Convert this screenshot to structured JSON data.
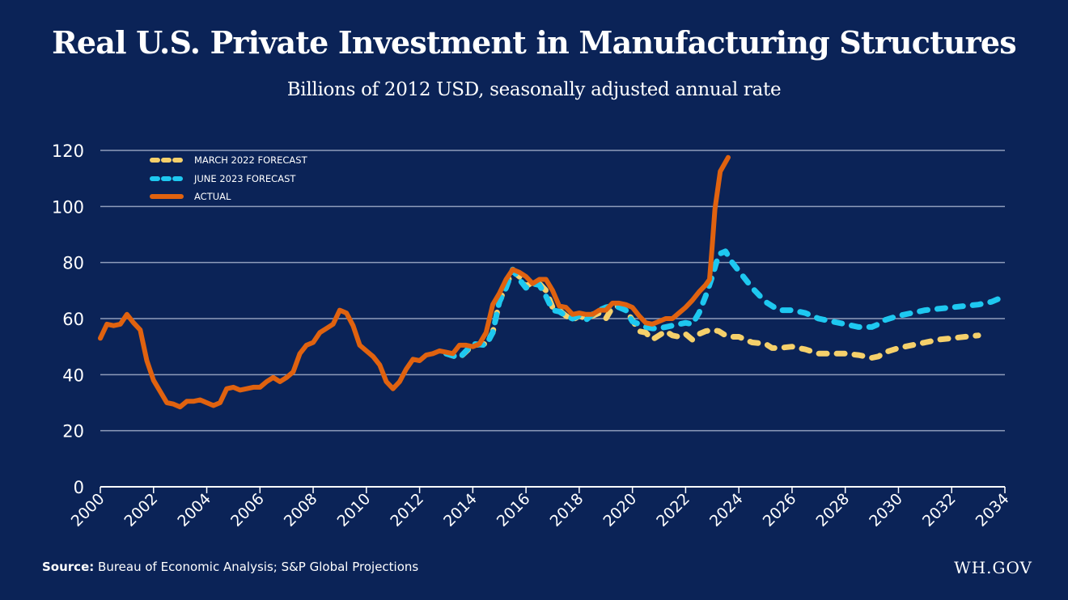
{
  "header": {
    "title": "Real U.S. Private Investment in Manufacturing Structures",
    "subtitle": "Billions of 2012 USD, seasonally adjusted annual rate"
  },
  "footer": {
    "source_label": "Source:",
    "source_text": "Bureau of Economic Analysis; S&P Global Projections",
    "brand": "WH.GOV"
  },
  "colors": {
    "background": "#0b2357",
    "grid": "#8f9dbb",
    "march_2022": "#f5d06b",
    "june_2023": "#1ec8f0",
    "actual": "#e0620f"
  },
  "chart_data": {
    "type": "line",
    "title": "Real U.S. Private Investment in Manufacturing Structures",
    "subtitle": "Billions of 2012 USD, seasonally adjusted annual rate",
    "xlabel": "",
    "ylabel": "",
    "xlim": [
      2000,
      2034
    ],
    "ylim": [
      0,
      120
    ],
    "x_ticks": [
      "2000",
      "2002",
      "2004",
      "2006",
      "2008",
      "2010",
      "2012",
      "2014",
      "2016",
      "2018",
      "2020",
      "2022",
      "2024",
      "2026",
      "2028",
      "2030",
      "2032",
      "2034"
    ],
    "y_ticks": [
      "0",
      "20",
      "40",
      "60",
      "80",
      "100",
      "120"
    ],
    "grid": "horizontal",
    "legend_position": "top-left",
    "series": [
      {
        "name": "MARCH 2022 FORECAST",
        "style": "dashed",
        "color": "#f5d06b",
        "points": [
          [
            2013.0,
            47.5
          ],
          [
            2013.5,
            46
          ],
          [
            2014.0,
            50.5
          ],
          [
            2014.5,
            51
          ],
          [
            2014.75,
            55
          ],
          [
            2015.0,
            66
          ],
          [
            2015.25,
            72
          ],
          [
            2015.5,
            77
          ],
          [
            2015.75,
            75
          ],
          [
            2016.0,
            71.5
          ],
          [
            2016.25,
            73
          ],
          [
            2016.5,
            72.5
          ],
          [
            2016.75,
            70
          ],
          [
            2017.0,
            64
          ],
          [
            2017.25,
            63
          ],
          [
            2017.5,
            61
          ],
          [
            2017.75,
            59.5
          ],
          [
            2018.0,
            61
          ],
          [
            2018.25,
            60
          ],
          [
            2018.5,
            61
          ],
          [
            2018.75,
            62
          ],
          [
            2019.0,
            60
          ],
          [
            2019.25,
            64
          ],
          [
            2019.5,
            64.5
          ],
          [
            2019.75,
            63
          ],
          [
            2020.0,
            59.5
          ],
          [
            2020.25,
            55.5
          ],
          [
            2020.5,
            55
          ],
          [
            2020.75,
            52.5
          ],
          [
            2021.0,
            54
          ],
          [
            2021.25,
            55.5
          ],
          [
            2021.5,
            54
          ],
          [
            2021.75,
            53.5
          ],
          [
            2022.0,
            54.5
          ],
          [
            2022.25,
            52.5
          ],
          [
            2022.5,
            54.5
          ],
          [
            2022.75,
            55.5
          ],
          [
            2023.0,
            56
          ],
          [
            2023.25,
            55.5
          ],
          [
            2023.5,
            54
          ],
          [
            2023.75,
            53.5
          ],
          [
            2024.0,
            53.5
          ],
          [
            2024.5,
            51.5
          ],
          [
            2025.0,
            51
          ],
          [
            2025.25,
            49.5
          ],
          [
            2025.5,
            49.5
          ],
          [
            2026.0,
            50
          ],
          [
            2026.5,
            49
          ],
          [
            2027.0,
            47.5
          ],
          [
            2027.5,
            47.5
          ],
          [
            2028.0,
            47.5
          ],
          [
            2028.5,
            47
          ],
          [
            2029.0,
            46
          ],
          [
            2029.25,
            46.5
          ],
          [
            2029.5,
            48
          ],
          [
            2030.0,
            49.5
          ],
          [
            2030.5,
            50.5
          ],
          [
            2031.0,
            51.5
          ],
          [
            2031.5,
            52.5
          ],
          [
            2032.0,
            53
          ],
          [
            2032.5,
            53.5
          ],
          [
            2033.0,
            54
          ]
        ]
      },
      {
        "name": "JUNE 2023 FORECAST",
        "style": "dashed",
        "color": "#1ec8f0",
        "points": [
          [
            2013.0,
            47.5
          ],
          [
            2013.5,
            46
          ],
          [
            2014.0,
            51
          ],
          [
            2014.5,
            50.5
          ],
          [
            2014.75,
            55
          ],
          [
            2015.0,
            66
          ],
          [
            2015.25,
            71
          ],
          [
            2015.5,
            77.5
          ],
          [
            2015.75,
            74
          ],
          [
            2016.0,
            71
          ],
          [
            2016.25,
            72.5
          ],
          [
            2016.5,
            72
          ],
          [
            2016.75,
            68
          ],
          [
            2017.0,
            63
          ],
          [
            2017.25,
            62.5
          ],
          [
            2017.5,
            61
          ],
          [
            2017.75,
            60
          ],
          [
            2018.0,
            61
          ],
          [
            2018.25,
            59.5
          ],
          [
            2018.5,
            61.5
          ],
          [
            2018.75,
            63
          ],
          [
            2019.0,
            64
          ],
          [
            2019.25,
            64.5
          ],
          [
            2019.5,
            64
          ],
          [
            2019.75,
            63
          ],
          [
            2020.0,
            59
          ],
          [
            2020.25,
            58
          ],
          [
            2020.5,
            57
          ],
          [
            2020.75,
            56.5
          ],
          [
            2021.0,
            56.5
          ],
          [
            2021.25,
            57
          ],
          [
            2021.5,
            57.5
          ],
          [
            2021.75,
            58
          ],
          [
            2022.0,
            58.5
          ],
          [
            2022.25,
            58
          ],
          [
            2022.5,
            62
          ],
          [
            2022.75,
            68
          ],
          [
            2023.0,
            75
          ],
          [
            2023.25,
            83
          ],
          [
            2023.5,
            84
          ],
          [
            2023.75,
            80
          ],
          [
            2024.0,
            77
          ],
          [
            2024.5,
            71
          ],
          [
            2025.0,
            66
          ],
          [
            2025.5,
            63
          ],
          [
            2026.0,
            63
          ],
          [
            2026.5,
            62
          ],
          [
            2027.0,
            60
          ],
          [
            2027.5,
            59
          ],
          [
            2028.0,
            58
          ],
          [
            2028.5,
            57
          ],
          [
            2029.0,
            57
          ],
          [
            2029.25,
            58
          ],
          [
            2029.5,
            59.5
          ],
          [
            2030.0,
            61
          ],
          [
            2030.5,
            62
          ],
          [
            2031.0,
            63
          ],
          [
            2031.5,
            63.5
          ],
          [
            2032.0,
            64
          ],
          [
            2032.5,
            64.5
          ],
          [
            2033.0,
            65
          ],
          [
            2033.5,
            66
          ],
          [
            2034.0,
            68
          ]
        ]
      },
      {
        "name": "ACTUAL",
        "style": "solid",
        "color": "#e0620f",
        "points": [
          [
            2000.0,
            53
          ],
          [
            2000.25,
            58
          ],
          [
            2000.5,
            57.5
          ],
          [
            2000.75,
            58
          ],
          [
            2001.0,
            61.5
          ],
          [
            2001.25,
            58.5
          ],
          [
            2001.5,
            56
          ],
          [
            2001.75,
            45
          ],
          [
            2002.0,
            38
          ],
          [
            2002.25,
            34
          ],
          [
            2002.5,
            30
          ],
          [
            2002.75,
            29.5
          ],
          [
            2003.0,
            28.5
          ],
          [
            2003.25,
            30.5
          ],
          [
            2003.5,
            30.5
          ],
          [
            2003.75,
            31
          ],
          [
            2004.0,
            30
          ],
          [
            2004.25,
            29
          ],
          [
            2004.5,
            30
          ],
          [
            2004.75,
            35
          ],
          [
            2005.0,
            35.5
          ],
          [
            2005.25,
            34.5
          ],
          [
            2005.5,
            35
          ],
          [
            2005.75,
            35.5
          ],
          [
            2006.0,
            35.5
          ],
          [
            2006.25,
            37.5
          ],
          [
            2006.5,
            39
          ],
          [
            2006.75,
            37.5
          ],
          [
            2007.0,
            39
          ],
          [
            2007.25,
            41
          ],
          [
            2007.5,
            47.5
          ],
          [
            2007.75,
            50.5
          ],
          [
            2008.0,
            51.5
          ],
          [
            2008.25,
            55
          ],
          [
            2008.5,
            56.5
          ],
          [
            2008.75,
            58
          ],
          [
            2009.0,
            63
          ],
          [
            2009.25,
            62
          ],
          [
            2009.5,
            57.5
          ],
          [
            2009.75,
            50.5
          ],
          [
            2010.0,
            48.5
          ],
          [
            2010.25,
            46.5
          ],
          [
            2010.5,
            43.5
          ],
          [
            2010.75,
            37.5
          ],
          [
            2011.0,
            35
          ],
          [
            2011.25,
            37.5
          ],
          [
            2011.5,
            42
          ],
          [
            2011.75,
            45.5
          ],
          [
            2012.0,
            45
          ],
          [
            2012.25,
            47
          ],
          [
            2012.5,
            47.5
          ],
          [
            2012.75,
            48.5
          ],
          [
            2013.0,
            48
          ],
          [
            2013.25,
            47.5
          ],
          [
            2013.5,
            50.5
          ],
          [
            2013.75,
            50.5
          ],
          [
            2014.0,
            50
          ],
          [
            2014.25,
            51
          ],
          [
            2014.5,
            55
          ],
          [
            2014.75,
            65
          ],
          [
            2015.0,
            69
          ],
          [
            2015.25,
            74
          ],
          [
            2015.5,
            77.5
          ],
          [
            2015.75,
            76.5
          ],
          [
            2016.0,
            75
          ],
          [
            2016.25,
            72.5
          ],
          [
            2016.5,
            74
          ],
          [
            2016.75,
            74
          ],
          [
            2017.0,
            70
          ],
          [
            2017.25,
            64.5
          ],
          [
            2017.5,
            64
          ],
          [
            2017.75,
            61.5
          ],
          [
            2018.0,
            62
          ],
          [
            2018.25,
            61.5
          ],
          [
            2018.5,
            61.5
          ],
          [
            2018.75,
            63
          ],
          [
            2019.0,
            63
          ],
          [
            2019.25,
            65.5
          ],
          [
            2019.5,
            65.5
          ],
          [
            2019.75,
            65
          ],
          [
            2020.0,
            64
          ],
          [
            2020.25,
            61
          ],
          [
            2020.5,
            58.5
          ],
          [
            2020.75,
            58
          ],
          [
            2021.0,
            59
          ],
          [
            2021.25,
            60
          ],
          [
            2021.5,
            60
          ],
          [
            2021.75,
            62
          ],
          [
            2022.0,
            64
          ],
          [
            2022.25,
            66.5
          ],
          [
            2022.5,
            69.5
          ],
          [
            2022.75,
            72
          ],
          [
            2022.9,
            74
          ],
          [
            2023.0,
            86
          ],
          [
            2023.1,
            99
          ],
          [
            2023.3,
            112.5
          ],
          [
            2023.6,
            117.5
          ]
        ]
      }
    ]
  }
}
